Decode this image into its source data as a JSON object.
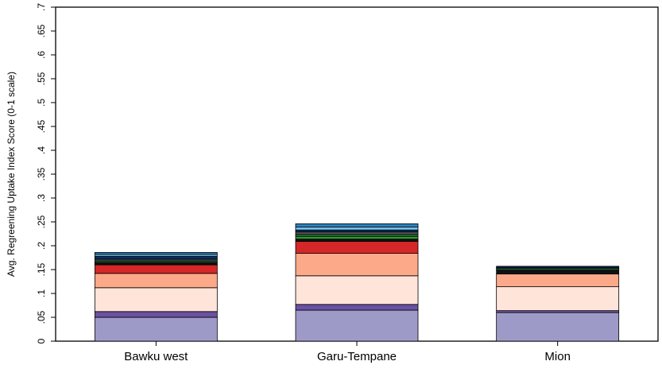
{
  "chart_data": {
    "type": "bar",
    "stacked": true,
    "ylabel": "Avg. Regreening Uptake Index Score (0-1 scale)",
    "xlabel": "",
    "ylim": [
      0,
      0.7
    ],
    "yticks": [
      0,
      0.05,
      0.1,
      0.15,
      0.2,
      0.25,
      0.3,
      0.35,
      0.4,
      0.45,
      0.5,
      0.55,
      0.6,
      0.65,
      0.7
    ],
    "ytick_labels": [
      "0",
      ".05",
      ".1",
      ".15",
      ".2",
      ".25",
      ".3",
      ".35",
      ".4",
      ".45",
      ".5",
      ".55",
      ".6",
      ".65",
      ".7"
    ],
    "grid": false,
    "legend": "none",
    "categories": [
      "Bawku west",
      "Garu-Tempane",
      "Mion"
    ],
    "series": [
      {
        "color": "#9e9ac8",
        "values": [
          0.05,
          0.065,
          0.06
        ]
      },
      {
        "color": "#6a51a3",
        "values": [
          0.012,
          0.012,
          0.004
        ]
      },
      {
        "color": "#ffe4da",
        "values": [
          0.05,
          0.06,
          0.05
        ]
      },
      {
        "color": "#fca989",
        "values": [
          0.03,
          0.047,
          0.027
        ]
      },
      {
        "color": "#d62728",
        "values": [
          0.018,
          0.025,
          0.0
        ]
      },
      {
        "color": "#111111",
        "values": [
          0.005,
          0.005,
          0.008
        ]
      },
      {
        "color": "#2ca02c",
        "values": [
          0.0,
          0.005,
          0.0
        ]
      },
      {
        "color": "#238b45",
        "values": [
          0.003,
          0.004,
          0.003
        ]
      },
      {
        "color": "#4a4a4a",
        "values": [
          0.004,
          0.006,
          0.002
        ]
      },
      {
        "color": "#08306b",
        "values": [
          0.006,
          0.004,
          0.003
        ]
      },
      {
        "color": "#74c0e8",
        "values": [
          0.004,
          0.006,
          0.0
        ]
      },
      {
        "color": "#3182bd",
        "values": [
          0.004,
          0.007,
          0.0
        ]
      }
    ]
  }
}
